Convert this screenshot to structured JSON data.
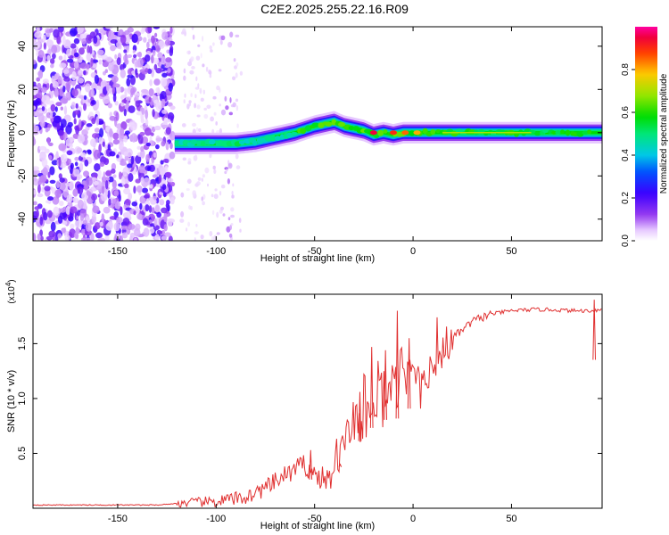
{
  "title": "C2E2.2025.255.22.16.R09",
  "chart_data": [
    {
      "type": "heatmap",
      "xlabel": "Height of straight line (km)",
      "ylabel": "Frequency (Hz)",
      "xlim": [
        -193,
        96
      ],
      "ylim": [
        -50,
        49
      ],
      "x_ticks": [
        -150,
        -100,
        -50,
        0,
        50
      ],
      "y_ticks": [
        -40,
        -20,
        0,
        20,
        40
      ],
      "colorbar": {
        "label": "Normalized spectral amplitude",
        "range": [
          0,
          1
        ],
        "ticks": [
          "0.0",
          "0.2",
          "0.4",
          "0.6",
          "0.8"
        ],
        "tick_values": [
          0,
          0.2,
          0.4,
          0.6,
          0.8
        ]
      },
      "noise_region_x": [
        -193,
        -122
      ],
      "faint_noise_x": [
        -118,
        -87
      ],
      "ridge": {
        "x": [
          -120,
          -110,
          -100,
          -90,
          -80,
          -70,
          -60,
          -50,
          -45,
          -40,
          -35,
          -30,
          -25,
          -20,
          -15,
          -10,
          -5,
          0,
          10,
          20,
          40,
          60,
          80,
          96
        ],
        "frequency": [
          -5,
          -5,
          -5,
          -5,
          -4,
          -2,
          0,
          3,
          4,
          5,
          3,
          2,
          1,
          -1,
          0,
          -1,
          0,
          0,
          0,
          0,
          0,
          0,
          0,
          0
        ]
      },
      "hot_spots": [
        {
          "x": -20,
          "frequency": 0,
          "amplitude": 0.95
        },
        {
          "x": -10,
          "frequency": 0,
          "amplitude": 0.9
        },
        {
          "x": -4,
          "frequency": 0,
          "amplitude": 0.85
        },
        {
          "x": 2,
          "frequency": 0,
          "amplitude": 0.8
        }
      ]
    },
    {
      "type": "line",
      "xlabel": "Height of straight line (km)",
      "ylabel": "SNR (10 * v/v)",
      "multiplier": "(x10",
      "multiplier_exp": "4",
      "multiplier_close": ")",
      "xlim": [
        -193,
        96
      ],
      "ylim": [
        0,
        1.95
      ],
      "x_ticks": [
        -150,
        -100,
        -50,
        0,
        50
      ],
      "y_ticks": [
        0.5,
        1.0,
        1.5
      ],
      "series_color": "#e03030",
      "envelope": {
        "x": [
          -193,
          -130,
          -115,
          -100,
          -85,
          -75,
          -65,
          -55,
          -48,
          -42,
          -36,
          -30,
          -25,
          -20,
          -15,
          -10,
          -5,
          0,
          5,
          10,
          15,
          20,
          25,
          30,
          35,
          40,
          50,
          60,
          70,
          80,
          90,
          96
        ],
        "y": [
          0.03,
          0.03,
          0.05,
          0.06,
          0.1,
          0.18,
          0.3,
          0.4,
          0.28,
          0.26,
          0.55,
          0.72,
          0.88,
          1.0,
          1.08,
          1.05,
          1.15,
          1.25,
          1.2,
          1.32,
          1.45,
          1.55,
          1.62,
          1.7,
          1.74,
          1.77,
          1.8,
          1.81,
          1.81,
          1.8,
          1.8,
          1.81
        ]
      },
      "spikes": [
        {
          "x": -52,
          "y": 0.53
        },
        {
          "x": -37,
          "y": 0.4
        },
        {
          "x": -27,
          "y": 1.06
        },
        {
          "x": -21,
          "y": 1.47
        },
        {
          "x": -8,
          "y": 1.8
        },
        {
          "x": -14,
          "y": 1.44
        },
        {
          "x": -2,
          "y": 1.55
        },
        {
          "x": 92,
          "y": 1.9
        }
      ]
    }
  ]
}
